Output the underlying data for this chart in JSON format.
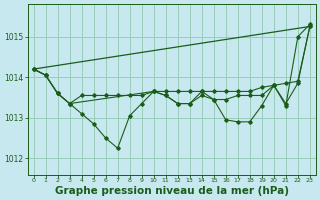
{
  "background_color": "#c8e8f0",
  "grid_color": "#99ccbb",
  "line_color": "#1a5c1a",
  "xlabel": "Graphe pression niveau de la mer (hPa)",
  "xlabel_fontsize": 7.5,
  "xlim": [
    -0.5,
    23.5
  ],
  "ylim": [
    1011.6,
    1015.8
  ],
  "yticks": [
    1012,
    1013,
    1014,
    1015
  ],
  "xticks": [
    0,
    1,
    2,
    3,
    4,
    5,
    6,
    7,
    8,
    9,
    10,
    11,
    12,
    13,
    14,
    15,
    16,
    17,
    18,
    19,
    20,
    21,
    22,
    23
  ],
  "line1_x": [
    0,
    23
  ],
  "line1_y": [
    1014.2,
    1015.25
  ],
  "line2_x": [
    0,
    1,
    2,
    3,
    4,
    5,
    6,
    7,
    8,
    9,
    10,
    11,
    12,
    13,
    14,
    15,
    16,
    17,
    18,
    19,
    20,
    21,
    22,
    23
  ],
  "line2_y": [
    1014.2,
    1014.05,
    1013.6,
    1013.35,
    1013.55,
    1013.55,
    1013.55,
    1013.55,
    1013.55,
    1013.55,
    1013.65,
    1013.65,
    1013.65,
    1013.65,
    1013.65,
    1013.65,
    1013.65,
    1013.65,
    1013.65,
    1013.75,
    1013.8,
    1013.85,
    1013.9,
    1015.25
  ],
  "line3_x": [
    0,
    1,
    2,
    3,
    4,
    5,
    6,
    7,
    8,
    9,
    10,
    11,
    12,
    13,
    14,
    15,
    16,
    17,
    18,
    19,
    20,
    21,
    22,
    23
  ],
  "line3_y": [
    1014.2,
    1014.05,
    1013.6,
    1013.35,
    1013.1,
    1012.85,
    1012.5,
    1012.25,
    1013.05,
    1013.35,
    1013.65,
    1013.55,
    1013.35,
    1013.35,
    1013.55,
    1013.45,
    1012.95,
    1012.9,
    1012.9,
    1013.3,
    1013.8,
    1013.3,
    1015.0,
    1015.3
  ],
  "line4_x": [
    0,
    1,
    2,
    3,
    10,
    11,
    12,
    13,
    14,
    15,
    16,
    17,
    18,
    19,
    20,
    21,
    22,
    23
  ],
  "line4_y": [
    1014.2,
    1014.05,
    1013.6,
    1013.35,
    1013.65,
    1013.55,
    1013.35,
    1013.35,
    1013.65,
    1013.45,
    1013.45,
    1013.55,
    1013.55,
    1013.55,
    1013.8,
    1013.35,
    1013.85,
    1015.25
  ]
}
